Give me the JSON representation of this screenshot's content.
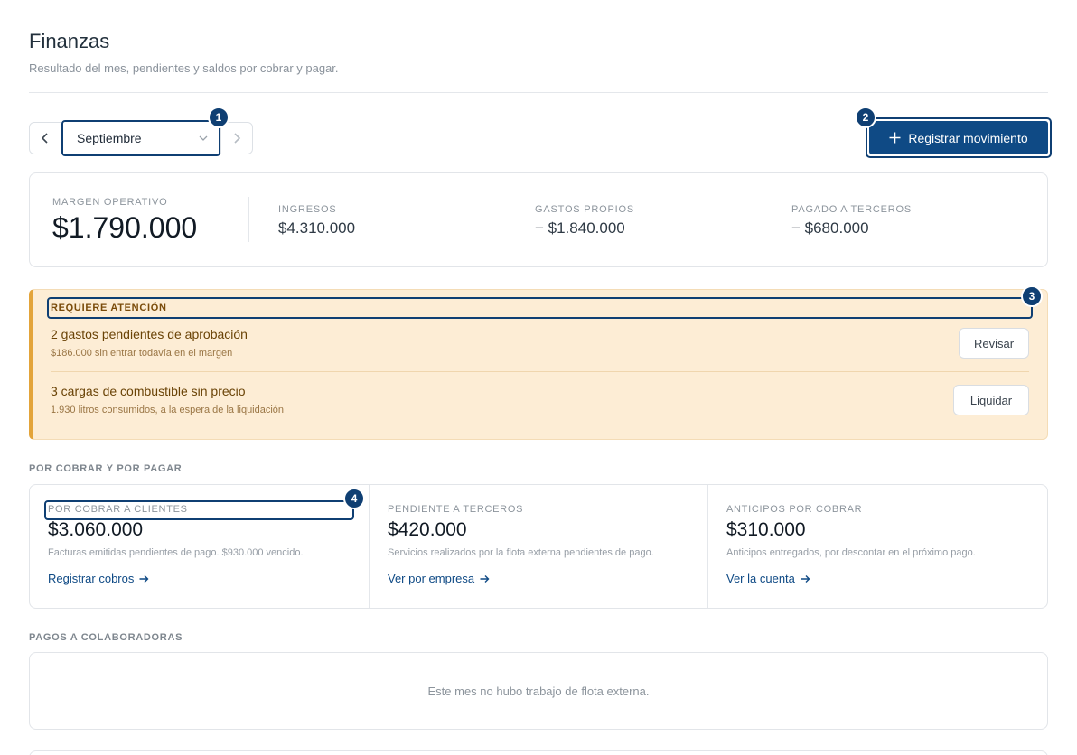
{
  "page": {
    "title": "Finanzas",
    "subtitle": "Resultado del mes, pendientes y saldos por cobrar y pagar."
  },
  "toolbar": {
    "prev_icon": "chevron-left-icon",
    "next_icon": "chevron-right-icon",
    "month_value": "Septiembre",
    "register_label": "Registrar movimiento",
    "register_icon": "plus-icon"
  },
  "markers": [
    "1",
    "2",
    "3",
    "4"
  ],
  "kpis": {
    "main": {
      "label": "MARGEN OPERATIVO",
      "value": "$1.790.000"
    },
    "items": [
      {
        "label": "INGRESOS",
        "value": "$4.310.000"
      },
      {
        "label": "GASTOS PROPIOS",
        "value": "− $1.840.000"
      },
      {
        "label": "PAGADO A TERCEROS",
        "value": "− $680.000"
      }
    ]
  },
  "attention": {
    "title": "REQUIERE ATENCIÓN",
    "rows": [
      {
        "title": "2 gastos pendientes de aprobación",
        "subtitle": "$186.000 sin entrar todavía en el margen",
        "action": "Revisar"
      },
      {
        "title": "3 cargas de combustible sin precio",
        "subtitle": "1.930 litros consumidos, a la espera de la liquidación",
        "action": "Liquidar"
      }
    ]
  },
  "receivables": {
    "section_title": "POR COBRAR Y POR PAGAR",
    "cols": [
      {
        "label": "POR COBRAR A CLIENTES",
        "value": "$3.060.000",
        "desc": "Facturas emitidas pendientes de pago. $930.000 vencido.",
        "link": "Registrar cobros"
      },
      {
        "label": "PENDIENTE A TERCEROS",
        "value": "$420.000",
        "desc": "Servicios realizados por la flota externa pendientes de pago.",
        "link": "Ver por empresa"
      },
      {
        "label": "ANTICIPOS POR COBRAR",
        "value": "$310.000",
        "desc": "Anticipos entregados, por descontar en el próximo pago.",
        "link": "Ver la cuenta"
      }
    ]
  },
  "collaborators": {
    "section_title": "PAGOS A COLABORADORAS",
    "empty_text": "Este mes no hubo trabajo de flota externa."
  },
  "colors": {
    "primary": "#0f4a85",
    "marker": "#0f3f73",
    "attention_bg": "#fdedd5",
    "attention_accent": "#e3a43a"
  }
}
